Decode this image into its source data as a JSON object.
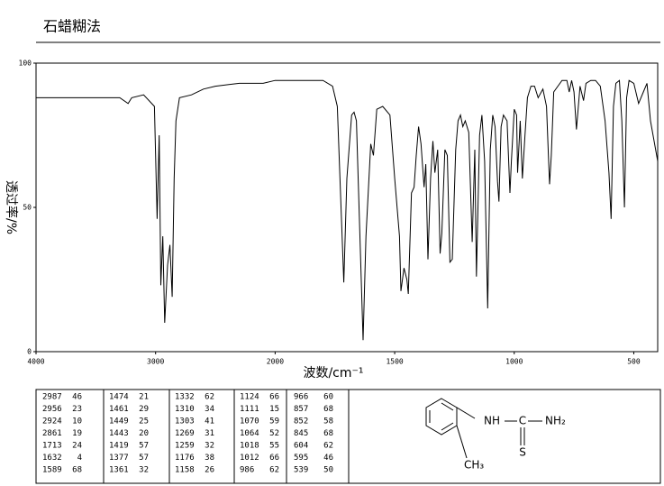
{
  "header": {
    "title": "石蜡糊法"
  },
  "chart_data": {
    "type": "line",
    "xlabel": "波数/cm⁻¹",
    "ylabel": "透过率/%",
    "xlim": [
      4000,
      400
    ],
    "x_scale_change": 2000,
    "xticks": [
      4000,
      3000,
      2000,
      1500,
      1000,
      500
    ],
    "ylim": [
      0,
      100
    ],
    "yticks": [
      0,
      50,
      100
    ],
    "color": "#000000",
    "x": [
      4000,
      3800,
      3600,
      3400,
      3300,
      3230,
      3200,
      3100,
      3010,
      2987,
      2970,
      2956,
      2940,
      2924,
      2900,
      2880,
      2861,
      2845,
      2830,
      2800,
      2700,
      2600,
      2500,
      2300,
      2100,
      2000,
      1900,
      1800,
      1760,
      1740,
      1713,
      1700,
      1680,
      1670,
      1660,
      1632,
      1620,
      1600,
      1589,
      1575,
      1550,
      1520,
      1500,
      1480,
      1474,
      1461,
      1449,
      1443,
      1430,
      1419,
      1410,
      1400,
      1390,
      1377,
      1370,
      1361,
      1350,
      1340,
      1332,
      1320,
      1310,
      1303,
      1290,
      1280,
      1269,
      1259,
      1245,
      1235,
      1225,
      1215,
      1205,
      1190,
      1176,
      1165,
      1158,
      1145,
      1135,
      1124,
      1111,
      1100,
      1090,
      1080,
      1070,
      1064,
      1055,
      1045,
      1030,
      1018,
      1012,
      1000,
      990,
      986,
      975,
      966,
      955,
      945,
      930,
      915,
      900,
      880,
      865,
      857,
      852,
      845,
      835,
      800,
      780,
      770,
      760,
      750,
      740,
      725,
      710,
      700,
      680,
      660,
      640,
      620,
      604,
      595,
      585,
      575,
      560,
      550,
      539,
      530,
      520,
      500,
      480,
      460,
      445,
      430,
      400
    ],
    "values": [
      88,
      88,
      88,
      88,
      88,
      86,
      88,
      89,
      85,
      46,
      75,
      23,
      40,
      10,
      30,
      37,
      19,
      60,
      80,
      88,
      89,
      91,
      92,
      93,
      93,
      94,
      94,
      94,
      92,
      85,
      24,
      60,
      82,
      83,
      80,
      4,
      40,
      72,
      68,
      84,
      85,
      82,
      60,
      40,
      21,
      29,
      25,
      20,
      55,
      57,
      68,
      78,
      72,
      57,
      65,
      32,
      60,
      73,
      62,
      70,
      34,
      41,
      70,
      68,
      31,
      32,
      70,
      80,
      82,
      78,
      80,
      76,
      38,
      70,
      26,
      75,
      82,
      66,
      15,
      70,
      82,
      78,
      59,
      52,
      78,
      82,
      80,
      55,
      66,
      84,
      82,
      62,
      80,
      60,
      75,
      88,
      92,
      92,
      88,
      91,
      85,
      68,
      58,
      68,
      90,
      94,
      94,
      90,
      94,
      90,
      77,
      92,
      87,
      93,
      94,
      94,
      92,
      80,
      62,
      46,
      85,
      93,
      94,
      80,
      50,
      88,
      94,
      93,
      86,
      90,
      93,
      80,
      66
    ]
  },
  "peak_table": [
    [
      [
        2987,
        46
      ],
      [
        2956,
        23
      ],
      [
        2924,
        10
      ],
      [
        2861,
        19
      ],
      [
        1713,
        24
      ],
      [
        1632,
        4
      ],
      [
        1589,
        68
      ]
    ],
    [
      [
        1474,
        21
      ],
      [
        1461,
        29
      ],
      [
        1449,
        25
      ],
      [
        1443,
        20
      ],
      [
        1419,
        57
      ],
      [
        1377,
        57
      ],
      [
        1361,
        32
      ]
    ],
    [
      [
        1332,
        62
      ],
      [
        1310,
        34
      ],
      [
        1303,
        41
      ],
      [
        1269,
        31
      ],
      [
        1259,
        32
      ],
      [
        1176,
        38
      ],
      [
        1158,
        26
      ]
    ],
    [
      [
        1124,
        66
      ],
      [
        1111,
        15
      ],
      [
        1070,
        59
      ],
      [
        1064,
        52
      ],
      [
        1018,
        55
      ],
      [
        1012,
        66
      ],
      [
        986,
        62
      ]
    ],
    [
      [
        966,
        60
      ],
      [
        857,
        68
      ],
      [
        852,
        58
      ],
      [
        845,
        68
      ],
      [
        604,
        62
      ],
      [
        595,
        46
      ],
      [
        539,
        50
      ]
    ]
  ],
  "structure": {
    "labels": [
      "NH",
      "C",
      "NH₂",
      "S",
      "CH₃"
    ]
  }
}
